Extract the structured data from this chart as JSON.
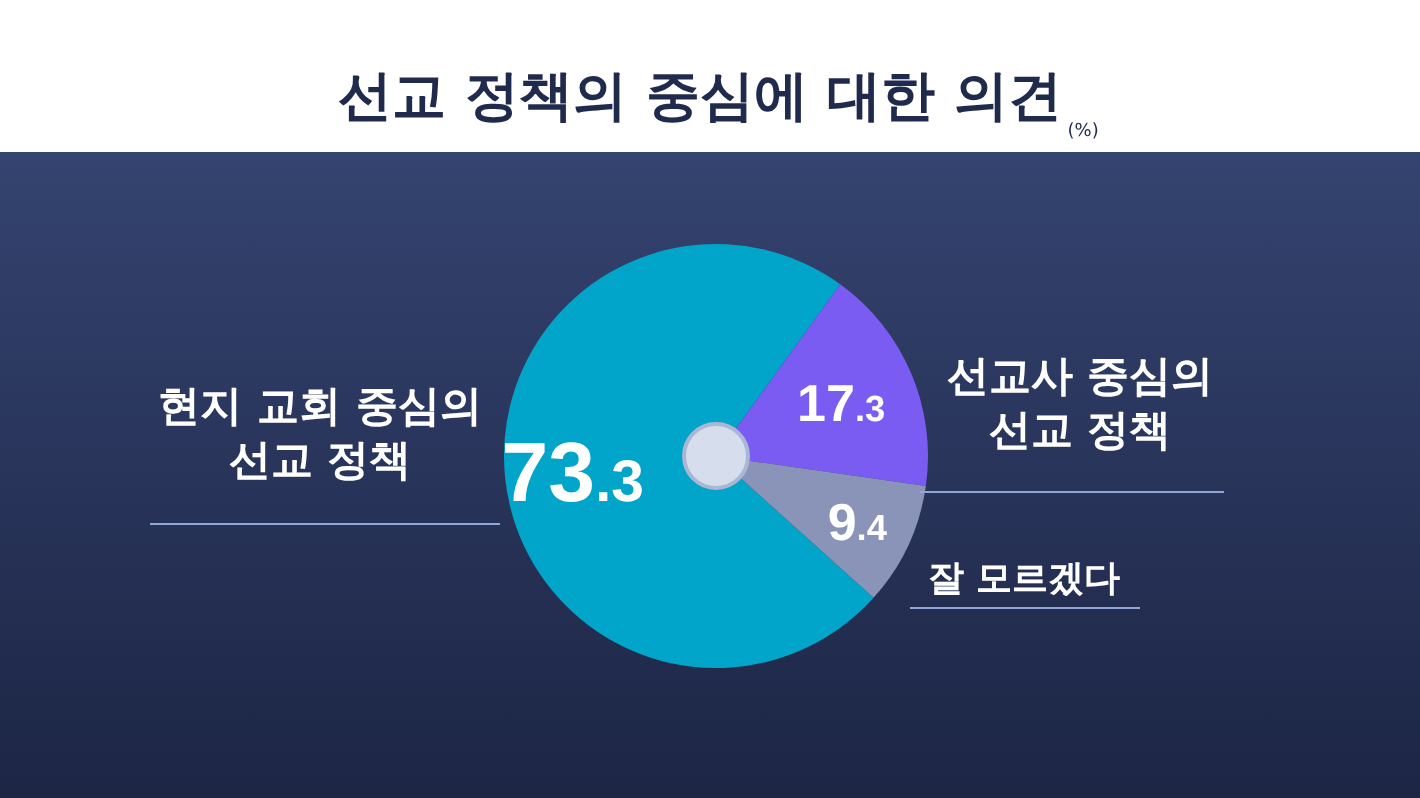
{
  "chart_data": {
    "type": "pie",
    "title": "선교 정책의 중심에 대한 의견",
    "subtitle": "(%)",
    "categories": [
      "현지 교회 중심의 선교 정책",
      "선교사 중심의 선교 정책",
      "잘 모르겠다"
    ],
    "values": [
      73.3,
      17.3,
      9.4
    ],
    "colors": [
      "#00a5c9",
      "#7b5cf2",
      "#8a93b8"
    ],
    "data_labels": true
  }
}
